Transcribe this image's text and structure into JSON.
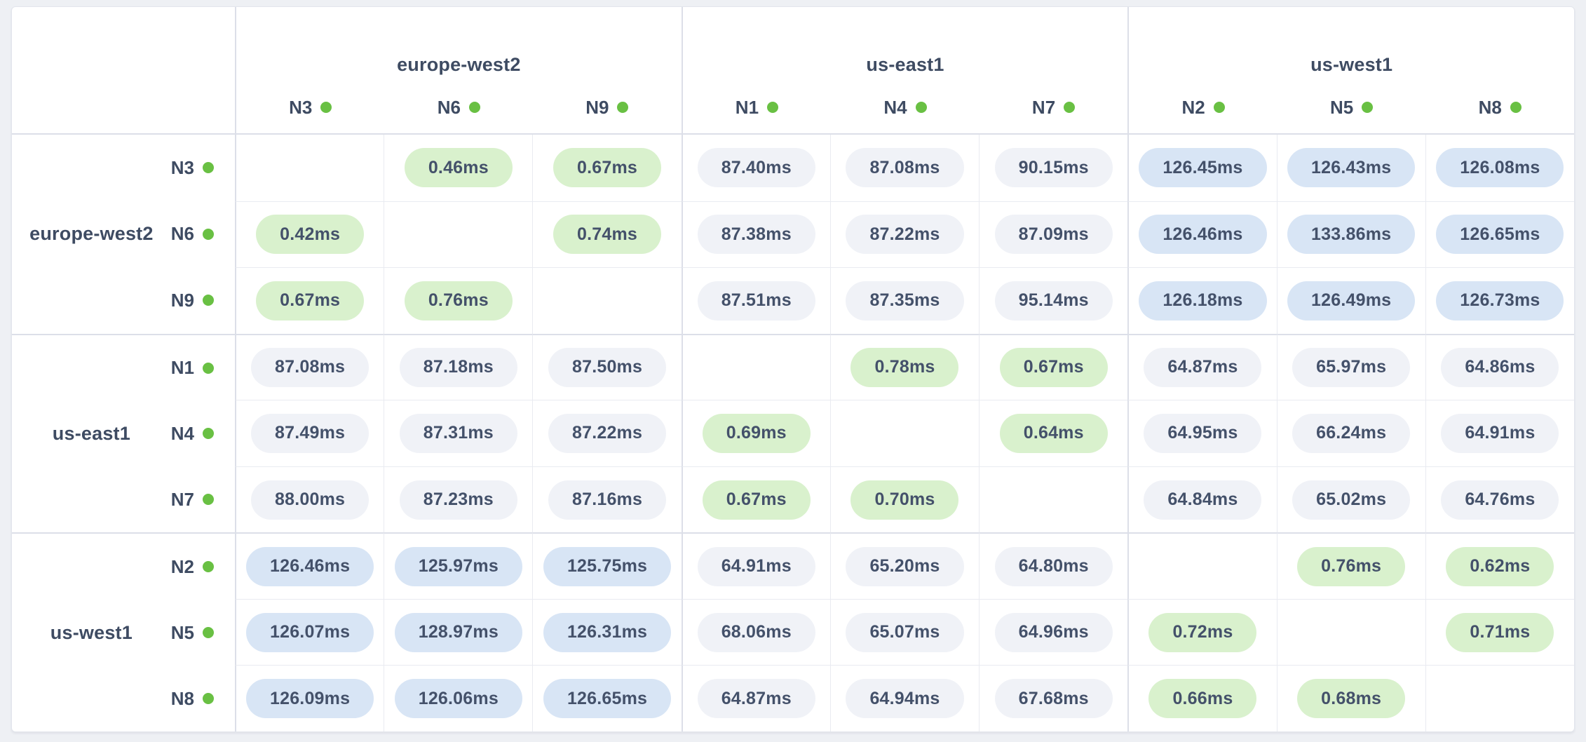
{
  "matrix": {
    "unit": "ms",
    "columns": {
      "groups": [
        {
          "region": "europe-west2",
          "nodes": [
            "N3",
            "N6",
            "N9"
          ]
        },
        {
          "region": "us-east1",
          "nodes": [
            "N1",
            "N4",
            "N7"
          ]
        },
        {
          "region": "us-west1",
          "nodes": [
            "N2",
            "N5",
            "N8"
          ]
        }
      ]
    },
    "rows": {
      "groups": [
        {
          "region": "europe-west2",
          "rows": [
            {
              "node": "N3",
              "cells": [
                "",
                "0.46ms",
                "0.67ms",
                "87.40ms",
                "87.08ms",
                "90.15ms",
                "126.45ms",
                "126.43ms",
                "126.08ms"
              ]
            },
            {
              "node": "N6",
              "cells": [
                "0.42ms",
                "",
                "0.74ms",
                "87.38ms",
                "87.22ms",
                "87.09ms",
                "126.46ms",
                "133.86ms",
                "126.65ms"
              ]
            },
            {
              "node": "N9",
              "cells": [
                "0.67ms",
                "0.76ms",
                "",
                "87.51ms",
                "87.35ms",
                "95.14ms",
                "126.18ms",
                "126.49ms",
                "126.73ms"
              ]
            }
          ]
        },
        {
          "region": "us-east1",
          "rows": [
            {
              "node": "N1",
              "cells": [
                "87.08ms",
                "87.18ms",
                "87.50ms",
                "",
                "0.78ms",
                "0.67ms",
                "64.87ms",
                "65.97ms",
                "64.86ms"
              ]
            },
            {
              "node": "N4",
              "cells": [
                "87.49ms",
                "87.31ms",
                "87.22ms",
                "0.69ms",
                "",
                "0.64ms",
                "64.95ms",
                "66.24ms",
                "64.91ms"
              ]
            },
            {
              "node": "N7",
              "cells": [
                "88.00ms",
                "87.23ms",
                "87.16ms",
                "0.67ms",
                "0.70ms",
                "",
                "64.84ms",
                "65.02ms",
                "64.76ms"
              ]
            }
          ]
        },
        {
          "region": "us-west1",
          "rows": [
            {
              "node": "N2",
              "cells": [
                "126.46ms",
                "125.97ms",
                "125.75ms",
                "64.91ms",
                "65.20ms",
                "64.80ms",
                "",
                "0.76ms",
                "0.62ms"
              ]
            },
            {
              "node": "N5",
              "cells": [
                "126.07ms",
                "128.97ms",
                "126.31ms",
                "68.06ms",
                "65.07ms",
                "64.96ms",
                "0.72ms",
                "",
                "0.71ms"
              ]
            },
            {
              "node": "N8",
              "cells": [
                "126.09ms",
                "126.06ms",
                "126.65ms",
                "64.87ms",
                "64.94ms",
                "67.68ms",
                "0.66ms",
                "0.68ms",
                ""
              ]
            }
          ]
        }
      ]
    }
  },
  "node_status": {
    "indicator": "online",
    "dot_color": "#69c043"
  },
  "colors": {
    "latency_low_bg": "#d9f1cd",
    "latency_mid_bg": "#f0f2f7",
    "latency_high_bg": "#d8e5f5",
    "text": "#3e4b62"
  }
}
